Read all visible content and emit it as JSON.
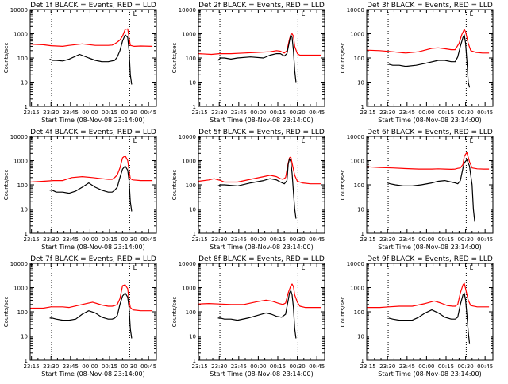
{
  "figure": {
    "ylabel": "Counts/sec",
    "xlabel": "Start Time (08-Nov-08 23:14:00)",
    "x_tick_labels": [
      "23:15",
      "23:30",
      "23:45",
      "00:00",
      "00:15",
      "00:30",
      "00:45"
    ],
    "y_tick_labels": [
      "1",
      "10",
      "100",
      "1000",
      "10000"
    ],
    "flag_glyph": "L",
    "colors": {
      "events": "#000000",
      "lld": "#ff0000",
      "dotted": "#000000"
    }
  },
  "chart_data": [
    {
      "type": "line",
      "title": "Det 1f BLACK = Events, RED = LLD",
      "xlabel": "Start Time (08-Nov-08 23:14:00)",
      "ylabel": "Counts/sec",
      "x_unit": "minutes since 23:14:00",
      "xlim": [
        0,
        97
      ],
      "ylim": [
        1,
        10000
      ],
      "yscale": "log",
      "vlines": [
        16.5,
        76.5
      ],
      "series": [
        {
          "name": "LLD",
          "color": "#ff0000",
          "x": [
            0,
            10,
            16,
            25,
            30,
            40,
            50,
            55,
            60,
            63,
            65,
            67,
            69,
            71,
            73,
            75,
            76,
            77,
            80,
            85,
            94
          ],
          "y": [
            370,
            350,
            320,
            300,
            330,
            380,
            330,
            330,
            330,
            340,
            380,
            450,
            550,
            800,
            1500,
            1600,
            700,
            330,
            300,
            310,
            300
          ]
        },
        {
          "name": "Events",
          "color": "#000000",
          "x": [
            15,
            17,
            20,
            25,
            30,
            38,
            45,
            50,
            55,
            60,
            65,
            67,
            69,
            71,
            73,
            75,
            76,
            77,
            78
          ],
          "y": [
            90,
            80,
            80,
            75,
            90,
            140,
            100,
            80,
            70,
            70,
            80,
            110,
            200,
            500,
            900,
            700,
            200,
            20,
            8
          ]
        }
      ]
    },
    {
      "type": "line",
      "title": "Det 2f BLACK = Events, RED = LLD",
      "xlabel": "Start Time (08-Nov-08 23:14:00)",
      "ylabel": "Counts/sec",
      "x_unit": "minutes since 23:14:00",
      "xlim": [
        0,
        97
      ],
      "ylim": [
        1,
        10000
      ],
      "yscale": "log",
      "vlines": [
        16.5,
        76.5
      ],
      "series": [
        {
          "name": "LLD",
          "color": "#ff0000",
          "x": [
            0,
            10,
            16,
            25,
            35,
            45,
            55,
            60,
            63,
            66,
            68,
            70,
            71,
            72,
            73,
            74,
            76,
            78,
            82,
            87,
            94
          ],
          "y": [
            150,
            140,
            150,
            150,
            160,
            170,
            180,
            200,
            190,
            160,
            200,
            600,
            900,
            1000,
            800,
            300,
            150,
            130,
            130,
            130,
            130
          ]
        },
        {
          "name": "Events",
          "color": "#000000",
          "x": [
            15,
            17,
            20,
            25,
            30,
            40,
            50,
            55,
            60,
            63,
            66,
            68,
            70,
            71,
            72,
            73,
            74,
            75
          ],
          "y": [
            80,
            100,
            100,
            90,
            100,
            110,
            100,
            130,
            150,
            150,
            120,
            150,
            500,
            900,
            700,
            200,
            30,
            10
          ]
        }
      ]
    },
    {
      "type": "line",
      "title": "Det 3f BLACK = Events, RED = LLD",
      "xlabel": "Start Time (08-Nov-08 23:14:00)",
      "ylabel": "Counts/sec",
      "x_unit": "minutes since 23:14:00",
      "xlim": [
        0,
        97
      ],
      "ylim": [
        1,
        10000
      ],
      "yscale": "log",
      "vlines": [
        16.5,
        76.5
      ],
      "series": [
        {
          "name": "LLD",
          "color": "#ff0000",
          "x": [
            0,
            10,
            20,
            30,
            40,
            50,
            55,
            60,
            65,
            68,
            71,
            73,
            75,
            76,
            78,
            80,
            84,
            89,
            94
          ],
          "y": [
            210,
            200,
            180,
            160,
            180,
            250,
            260,
            240,
            220,
            220,
            400,
            900,
            1500,
            1200,
            400,
            200,
            170,
            160,
            160
          ]
        },
        {
          "name": "Events",
          "color": "#000000",
          "x": [
            17,
            20,
            25,
            30,
            38,
            45,
            55,
            60,
            65,
            68,
            70,
            72,
            74,
            75,
            76,
            77,
            78,
            79
          ],
          "y": [
            55,
            50,
            50,
            45,
            50,
            60,
            80,
            80,
            70,
            70,
            110,
            300,
            700,
            900,
            400,
            80,
            10,
            6
          ]
        }
      ]
    },
    {
      "type": "line",
      "title": "Det 4f BLACK = Events, RED = LLD",
      "xlabel": "Start Time (08-Nov-08 23:14:00)",
      "ylabel": "Counts/sec",
      "x_unit": "minutes since 23:14:00",
      "xlim": [
        0,
        97
      ],
      "ylim": [
        1,
        10000
      ],
      "yscale": "log",
      "vlines": [
        16.5,
        76.5
      ],
      "series": [
        {
          "name": "LLD",
          "color": "#ff0000",
          "x": [
            0,
            10,
            18,
            25,
            32,
            40,
            48,
            55,
            60,
            63,
            65,
            67,
            69,
            71,
            73,
            75,
            76,
            77,
            79,
            85,
            94
          ],
          "y": [
            130,
            140,
            150,
            150,
            200,
            220,
            200,
            180,
            170,
            170,
            200,
            260,
            500,
            1300,
            1600,
            1000,
            400,
            180,
            160,
            150,
            150
          ]
        },
        {
          "name": "Events",
          "color": "#000000",
          "x": [
            15,
            17,
            20,
            25,
            30,
            35,
            40,
            45,
            50,
            55,
            60,
            63,
            65,
            67,
            69,
            71,
            73,
            75,
            76,
            77,
            78
          ],
          "y": [
            60,
            60,
            50,
            50,
            45,
            55,
            80,
            120,
            80,
            60,
            50,
            50,
            60,
            80,
            200,
            450,
            600,
            400,
            150,
            20,
            8
          ]
        }
      ]
    },
    {
      "type": "line",
      "title": "Det 5f BLACK = Events, RED = LLD",
      "xlabel": "Start Time (08-Nov-08 23:14:00)",
      "ylabel": "Counts/sec",
      "x_unit": "minutes since 23:14:00",
      "xlim": [
        0,
        97
      ],
      "ylim": [
        1,
        10000
      ],
      "yscale": "log",
      "vlines": [
        16.5,
        76.5
      ],
      "series": [
        {
          "name": "LLD",
          "color": "#ff0000",
          "x": [
            0,
            8,
            12,
            17,
            20,
            30,
            40,
            50,
            55,
            60,
            63,
            65,
            67,
            69,
            70,
            71,
            72,
            74,
            76,
            80,
            86,
            94
          ],
          "y": [
            140,
            160,
            180,
            150,
            130,
            130,
            170,
            220,
            250,
            220,
            180,
            170,
            200,
            800,
            1300,
            1400,
            800,
            250,
            140,
            120,
            110,
            110
          ]
        },
        {
          "name": "Events",
          "color": "#000000",
          "x": [
            15,
            17,
            20,
            25,
            30,
            40,
            50,
            55,
            60,
            63,
            66,
            68,
            69,
            70,
            71,
            72,
            73,
            74,
            75
          ],
          "y": [
            90,
            100,
            100,
            95,
            90,
            120,
            150,
            180,
            160,
            130,
            110,
            150,
            700,
            1200,
            900,
            300,
            50,
            10,
            4
          ]
        }
      ]
    },
    {
      "type": "line",
      "title": "Det 6f BLACK = Events, RED = LLD",
      "xlabel": "Start Time (08-Nov-08 23:14:00)",
      "ylabel": "Counts/sec",
      "x_unit": "minutes since 23:14:00",
      "xlim": [
        0,
        97
      ],
      "ylim": [
        1,
        10000
      ],
      "yscale": "log",
      "vlines": [
        16.5,
        76.5
      ],
      "series": [
        {
          "name": "LLD",
          "color": "#ff0000",
          "x": [
            0,
            10,
            20,
            30,
            40,
            50,
            55,
            60,
            65,
            68,
            70,
            72,
            74,
            75,
            77,
            79,
            81,
            85,
            90,
            94
          ],
          "y": [
            560,
            520,
            500,
            470,
            450,
            450,
            460,
            450,
            440,
            450,
            480,
            500,
            700,
            1500,
            2200,
            900,
            500,
            460,
            450,
            450
          ]
        },
        {
          "name": "Events",
          "color": "#000000",
          "x": [
            16,
            18,
            22,
            28,
            35,
            42,
            50,
            55,
            60,
            65,
            68,
            70,
            72,
            74,
            75,
            77,
            79,
            81,
            82,
            83
          ],
          "y": [
            120,
            110,
            100,
            90,
            90,
            100,
            120,
            140,
            150,
            130,
            120,
            110,
            150,
            500,
            800,
            1100,
            600,
            100,
            10,
            3
          ]
        }
      ]
    },
    {
      "type": "line",
      "title": "Det 7f BLACK = Events, RED = LLD",
      "xlabel": "Start Time (08-Nov-08 23:14:00)",
      "ylabel": "Counts/sec",
      "x_unit": "minutes since 23:14:00",
      "xlim": [
        0,
        97
      ],
      "ylim": [
        1,
        10000
      ],
      "yscale": "log",
      "vlines": [
        16.5,
        76.5
      ],
      "series": [
        {
          "name": "LLD",
          "color": "#ff0000",
          "x": [
            0,
            10,
            16,
            25,
            30,
            40,
            48,
            55,
            60,
            63,
            65,
            67,
            69,
            71,
            73,
            75,
            76,
            77,
            79,
            85,
            94
          ],
          "y": [
            140,
            140,
            160,
            160,
            150,
            200,
            250,
            190,
            170,
            170,
            180,
            200,
            350,
            1200,
            1300,
            900,
            300,
            150,
            120,
            110,
            110
          ]
        },
        {
          "name": "Events",
          "color": "#000000",
          "x": [
            15,
            17,
            20,
            25,
            30,
            35,
            40,
            45,
            50,
            55,
            60,
            63,
            65,
            67,
            69,
            71,
            73,
            75,
            76,
            77,
            78
          ],
          "y": [
            55,
            55,
            50,
            45,
            45,
            50,
            80,
            110,
            90,
            60,
            50,
            50,
            55,
            70,
            200,
            450,
            600,
            400,
            150,
            20,
            8
          ]
        }
      ]
    },
    {
      "type": "line",
      "title": "Det 8f BLACK = Events, RED = LLD",
      "xlabel": "Start Time (08-Nov-08 23:14:00)",
      "ylabel": "Counts/sec",
      "x_unit": "minutes since 23:14:00",
      "xlim": [
        0,
        97
      ],
      "ylim": [
        1,
        10000
      ],
      "yscale": "log",
      "vlines": [
        16.5,
        76.5
      ],
      "series": [
        {
          "name": "LLD",
          "color": "#ff0000",
          "x": [
            0,
            8,
            16,
            25,
            35,
            45,
            52,
            57,
            62,
            65,
            67,
            69,
            71,
            72,
            73,
            74,
            76,
            78,
            82,
            88,
            94
          ],
          "y": [
            210,
            220,
            210,
            200,
            200,
            260,
            300,
            270,
            220,
            200,
            230,
            600,
            1200,
            1400,
            1100,
            500,
            250,
            170,
            150,
            150,
            150
          ]
        },
        {
          "name": "Events",
          "color": "#000000",
          "x": [
            15,
            17,
            20,
            25,
            30,
            38,
            45,
            52,
            56,
            60,
            64,
            67,
            69,
            70,
            71,
            72,
            73,
            74,
            75
          ],
          "y": [
            55,
            55,
            50,
            50,
            45,
            55,
            70,
            90,
            80,
            65,
            60,
            80,
            300,
            600,
            750,
            500,
            150,
            20,
            8
          ]
        }
      ]
    },
    {
      "type": "line",
      "title": "Det 9f BLACK = Events, RED = LLD",
      "xlabel": "Start Time (08-Nov-08 23:14:00)",
      "ylabel": "Counts/sec",
      "x_unit": "minutes since 23:14:00",
      "xlim": [
        0,
        97
      ],
      "ylim": [
        1,
        10000
      ],
      "yscale": "log",
      "vlines": [
        16.5,
        76.5
      ],
      "series": [
        {
          "name": "LLD",
          "color": "#ff0000",
          "x": [
            0,
            10,
            17,
            25,
            35,
            45,
            52,
            57,
            62,
            66,
            68,
            70,
            72,
            74,
            75,
            76,
            78,
            80,
            85,
            90,
            94
          ],
          "y": [
            150,
            150,
            160,
            170,
            170,
            220,
            280,
            230,
            180,
            170,
            170,
            200,
            600,
            1300,
            1500,
            900,
            300,
            180,
            160,
            160,
            160
          ]
        },
        {
          "name": "Events",
          "color": "#000000",
          "x": [
            17,
            20,
            25,
            30,
            35,
            40,
            45,
            50,
            55,
            60,
            65,
            68,
            70,
            72,
            74,
            75,
            76,
            77,
            78,
            79
          ],
          "y": [
            55,
            50,
            45,
            45,
            45,
            60,
            90,
            120,
            90,
            60,
            50,
            50,
            60,
            200,
            500,
            600,
            300,
            80,
            15,
            5
          ]
        }
      ]
    }
  ]
}
